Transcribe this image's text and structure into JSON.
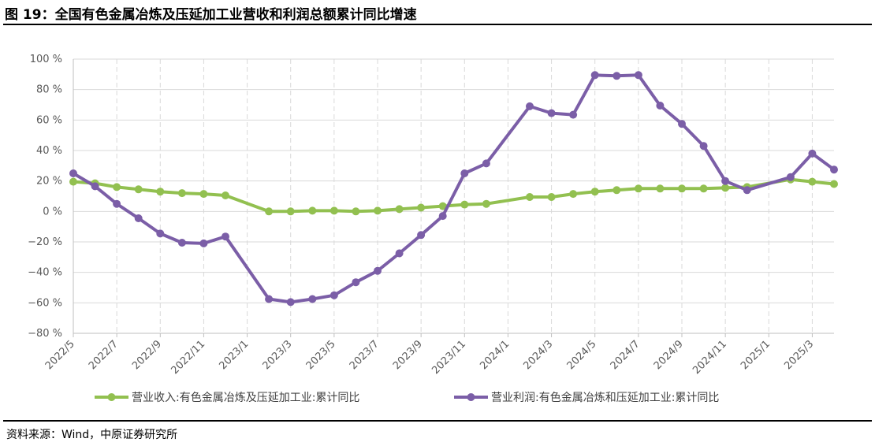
{
  "header": {
    "title": "图 19：全国有色金属冶炼及压延加工业营收和利润总额累计同比增速"
  },
  "footer": {
    "source": "资料来源：Wind，中原证券研究所"
  },
  "colors": {
    "series_revenue": "#92C050",
    "series_profit": "#7B5EA7",
    "grid": "#D9D9D9",
    "axis": "#BFBFBF",
    "tick_text": "#595959"
  },
  "chart_data": {
    "type": "line",
    "title": "",
    "xlabel": "",
    "ylabel": "",
    "ylim": [
      -80,
      100
    ],
    "yticks": [
      100,
      80,
      60,
      40,
      20,
      0,
      -20,
      -40,
      -60,
      -80
    ],
    "ytick_labels": [
      "100 %",
      "80 %",
      "60 %",
      "40 %",
      "20 %",
      "0 %",
      "−20 %",
      "−40 %",
      "−60 %",
      "−80 %"
    ],
    "x_months": [
      "2022/5",
      "2022/6",
      "2022/7",
      "2022/8",
      "2022/9",
      "2022/10",
      "2022/11",
      "2022/12",
      "2023/1",
      "2023/2",
      "2023/3",
      "2023/4",
      "2023/5",
      "2023/6",
      "2023/7",
      "2023/8",
      "2023/9",
      "2023/10",
      "2023/11",
      "2023/12",
      "2024/1",
      "2024/2",
      "2024/3",
      "2024/4",
      "2024/5",
      "2024/6",
      "2024/7",
      "2024/8",
      "2024/9",
      "2024/10",
      "2024/11",
      "2024/12",
      "2025/1",
      "2025/2",
      "2025/3",
      "2025/4"
    ],
    "xtick_labels": [
      "2022/5",
      "2022/7",
      "2022/9",
      "2022/11",
      "2023/1",
      "2023/3",
      "2023/5",
      "2023/7",
      "2023/9",
      "2023/11",
      "2024/1",
      "2024/3",
      "2024/5",
      "2024/7",
      "2024/9",
      "2024/11",
      "2025/1",
      "2025/3"
    ],
    "grid": true,
    "legend_position": "bottom",
    "series": [
      {
        "name": "营业收入:有色金属冶炼及压延加工业:累计同比",
        "points": [
          [
            "2022/5",
            19.5
          ],
          [
            "2022/6",
            18.5
          ],
          [
            "2022/7",
            16
          ],
          [
            "2022/8",
            14.5
          ],
          [
            "2022/9",
            13
          ],
          [
            "2022/10",
            12
          ],
          [
            "2022/11",
            11.5
          ],
          [
            "2022/12",
            10.5
          ],
          [
            "2023/2",
            0
          ],
          [
            "2023/3",
            0
          ],
          [
            "2023/4",
            0.5
          ],
          [
            "2023/5",
            0.5
          ],
          [
            "2023/6",
            0
          ],
          [
            "2023/7",
            0.5
          ],
          [
            "2023/8",
            1.5
          ],
          [
            "2023/9",
            2.5
          ],
          [
            "2023/10",
            3.5
          ],
          [
            "2023/11",
            4.5
          ],
          [
            "2023/12",
            5
          ],
          [
            "2024/2",
            9.5
          ],
          [
            "2024/3",
            9.5
          ],
          [
            "2024/4",
            11.5
          ],
          [
            "2024/5",
            13
          ],
          [
            "2024/6",
            14
          ],
          [
            "2024/7",
            15
          ],
          [
            "2024/8",
            15
          ],
          [
            "2024/9",
            15
          ],
          [
            "2024/10",
            15
          ],
          [
            "2024/11",
            15.5
          ],
          [
            "2024/12",
            16
          ],
          [
            "2025/2",
            21
          ],
          [
            "2025/3",
            19.5
          ],
          [
            "2025/4",
            18
          ]
        ]
      },
      {
        "name": "营业利润:有色金属冶炼和压延加工业:累计同比",
        "points": [
          [
            "2022/5",
            25
          ],
          [
            "2022/6",
            16.5
          ],
          [
            "2022/7",
            5
          ],
          [
            "2022/8",
            -4.5
          ],
          [
            "2022/9",
            -14.5
          ],
          [
            "2022/10",
            -20.5
          ],
          [
            "2022/11",
            -21
          ],
          [
            "2022/12",
            -16.5
          ],
          [
            "2023/2",
            -57.5
          ],
          [
            "2023/3",
            -59.5
          ],
          [
            "2023/4",
            -57.5
          ],
          [
            "2023/5",
            -55
          ],
          [
            "2023/6",
            -46.5
          ],
          [
            "2023/7",
            -39
          ],
          [
            "2023/8",
            -27.5
          ],
          [
            "2023/9",
            -15.5
          ],
          [
            "2023/10",
            -3
          ],
          [
            "2023/11",
            25
          ],
          [
            "2023/12",
            31.5
          ],
          [
            "2024/2",
            69
          ],
          [
            "2024/3",
            64.5
          ],
          [
            "2024/4",
            63.5
          ],
          [
            "2024/5",
            89.5
          ],
          [
            "2024/6",
            89
          ],
          [
            "2024/7",
            89.5
          ],
          [
            "2024/8",
            69.5
          ],
          [
            "2024/9",
            57.5
          ],
          [
            "2024/10",
            43
          ],
          [
            "2024/11",
            20
          ],
          [
            "2024/12",
            14
          ],
          [
            "2025/2",
            22.5
          ],
          [
            "2025/3",
            38
          ],
          [
            "2025/4",
            27.5
          ]
        ]
      }
    ]
  }
}
